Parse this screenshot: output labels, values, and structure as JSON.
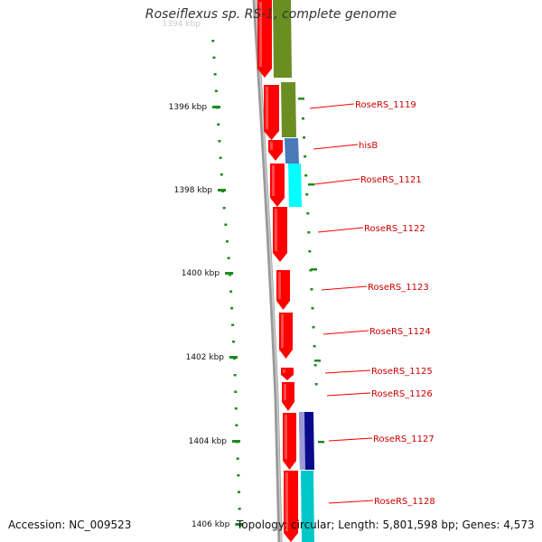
{
  "title": "Roseiflexus sp. RS-1, complete genome",
  "footer": {
    "accession": "Accession: NC_009523",
    "topology": "Topology: circular; Length: 5,801,598 bp; Genes: 4,573"
  },
  "colors": {
    "background": "#ffffff",
    "backbone": "#8a8a8a",
    "tick": "#1e8a1e",
    "cds_forward": "#ff0000",
    "gene_label": "#cc0000",
    "cog_olive": "#6b8e23",
    "cog_steelblue": "#4a7ab8",
    "cog_cyan": "#00ffff",
    "cog_navy": "#0a0a8a",
    "cog_lavender": "#9a9ad8",
    "cog_teal": "#00c8c8"
  },
  "scale": {
    "unit": "kbp",
    "labels": [
      "1396 kbp",
      "1398 kbp",
      "1400 kbp",
      "1402 kbp",
      "1404 kbp",
      "1406 kbp"
    ]
  },
  "gene_labels": [
    "RoseRS_1119",
    "hisB",
    "RoseRS_1121",
    "RoseRS_1122",
    "RoseRS_1123",
    "RoseRS_1124",
    "RoseRS_1125",
    "RoseRS_1126",
    "RoseRS_1127",
    "RoseRS_1128"
  ]
}
